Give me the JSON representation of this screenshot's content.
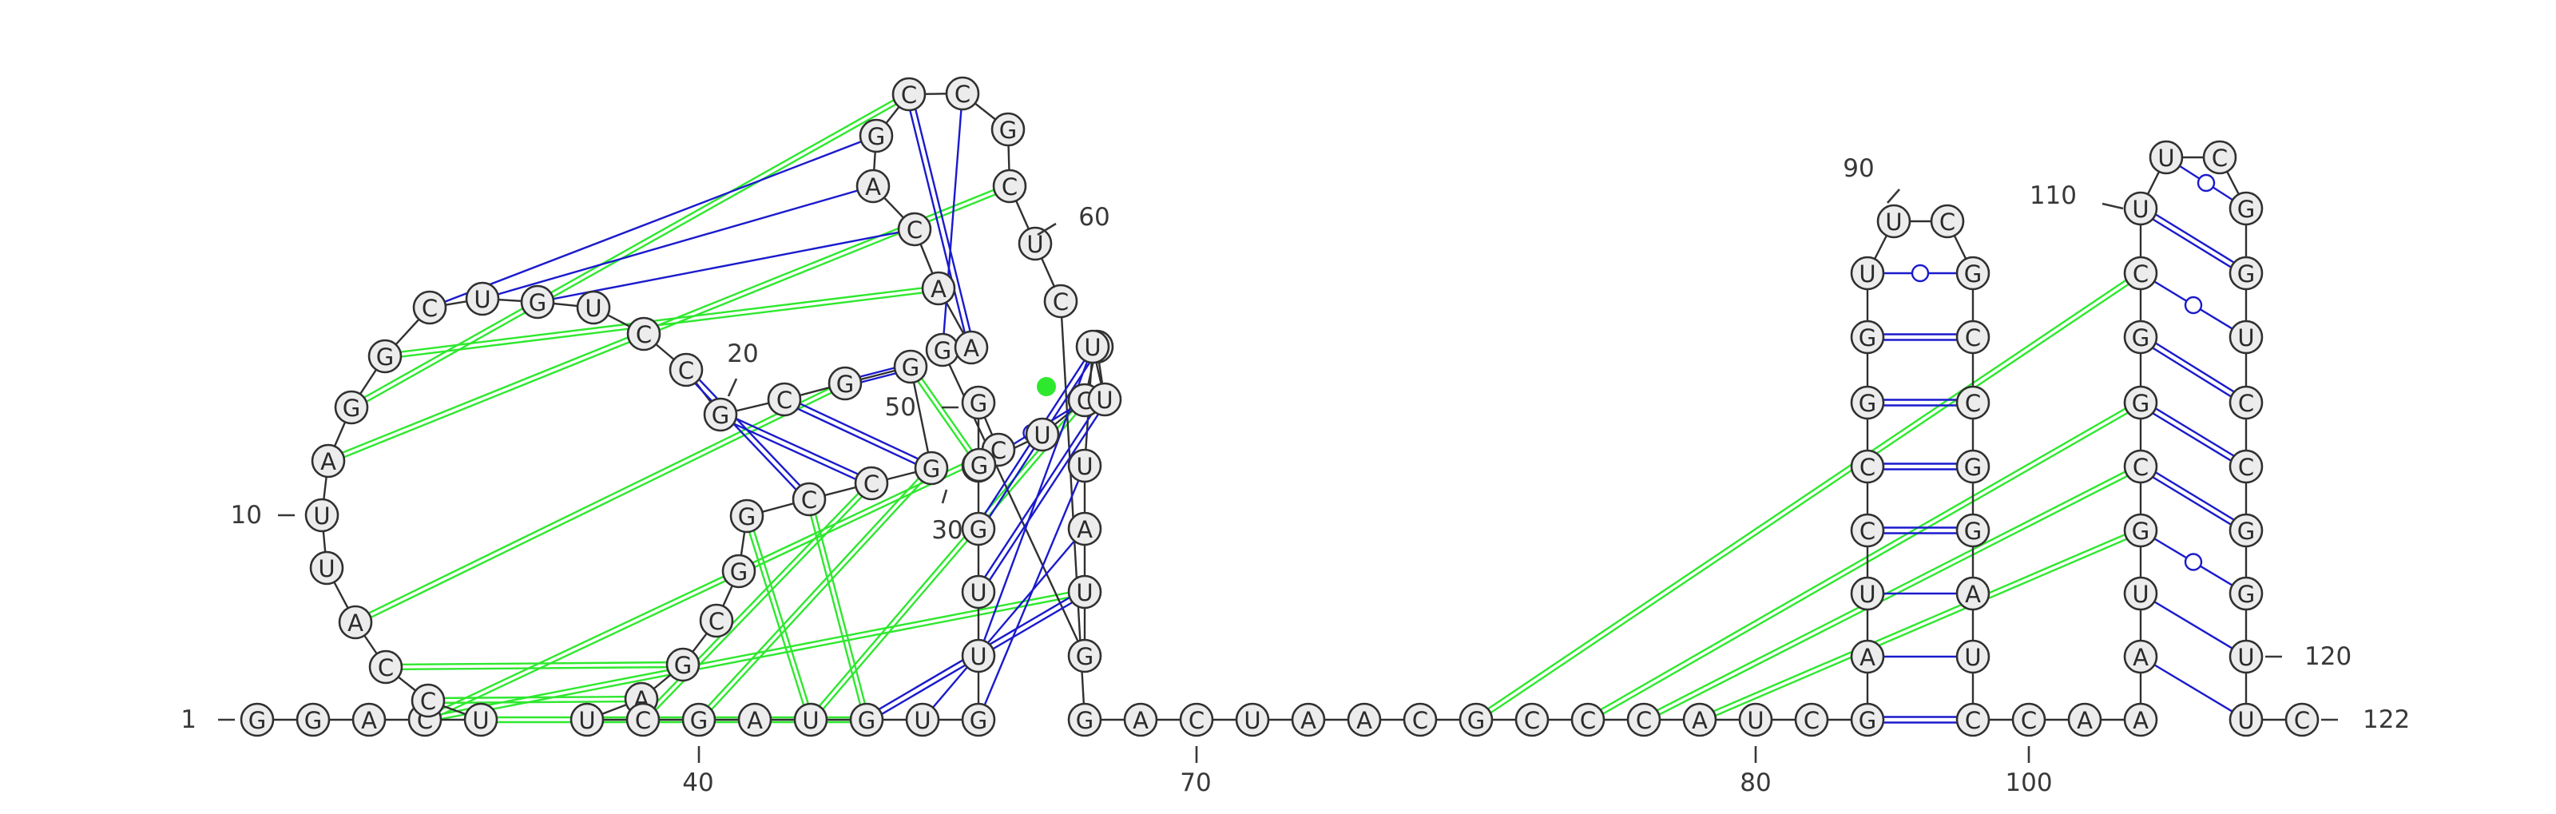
{
  "colors": {
    "canonical": "#1a1acd",
    "tertiary": "#2ee82e",
    "node_fill": "#ececec",
    "node_stroke": "#303030",
    "text": "#2a2a2a"
  },
  "nucleotides": [
    {
      "id": 1,
      "base": "G"
    },
    {
      "id": 2,
      "base": "G"
    },
    {
      "id": 3,
      "base": "A"
    },
    {
      "id": 4,
      "base": "C"
    },
    {
      "id": 5,
      "base": "U"
    },
    {
      "id": 6,
      "base": "C"
    },
    {
      "id": 7,
      "base": "C"
    },
    {
      "id": 8,
      "base": "A"
    },
    {
      "id": 9,
      "base": "U"
    },
    {
      "id": 10,
      "base": "U"
    },
    {
      "id": 11,
      "base": "A"
    },
    {
      "id": 12,
      "base": "G"
    },
    {
      "id": 13,
      "base": "G"
    },
    {
      "id": 14,
      "base": "C"
    },
    {
      "id": 15,
      "base": "U"
    },
    {
      "id": 16,
      "base": "G"
    },
    {
      "id": 17,
      "base": "U"
    },
    {
      "id": 18,
      "base": "C"
    },
    {
      "id": 19,
      "base": "C"
    },
    {
      "id": 20,
      "base": "G"
    },
    {
      "id": 21,
      "base": "C"
    },
    {
      "id": 22,
      "base": "G"
    },
    {
      "id": 23,
      "base": "G"
    },
    {
      "id": 24,
      "base": "G"
    },
    {
      "id": 25,
      "base": "C"
    },
    {
      "id": 26,
      "base": "C"
    },
    {
      "id": 27,
      "base": "G"
    },
    {
      "id": 28,
      "base": "G"
    },
    {
      "id": 29,
      "base": "C"
    },
    {
      "id": 30,
      "base": "G"
    },
    {
      "id": 31,
      "base": "A"
    },
    {
      "id": 32,
      "base": "U"
    },
    {
      "id": 33,
      "base": "C"
    },
    {
      "id": 34,
      "base": "G"
    },
    {
      "id": 35,
      "base": "A"
    },
    {
      "id": 36,
      "base": "U"
    },
    {
      "id": 37,
      "base": "G"
    },
    {
      "id": 38,
      "base": "U"
    },
    {
      "id": 39,
      "base": "G"
    },
    {
      "id": 40,
      "base": "U"
    },
    {
      "id": 41,
      "base": "U"
    },
    {
      "id": 42,
      "base": "G"
    },
    {
      "id": 43,
      "base": "C"
    },
    {
      "id": 44,
      "base": "G"
    },
    {
      "id": 45,
      "base": "C"
    },
    {
      "id": 46,
      "base": "G"
    },
    {
      "id": 47,
      "base": "U"
    },
    {
      "id": 48,
      "base": "C"
    },
    {
      "id": 49,
      "base": "G"
    },
    {
      "id": 50,
      "base": "U"
    },
    {
      "id": 51,
      "base": "U"
    },
    {
      "id": 52,
      "base": "U"
    },
    {
      "id": 53,
      "base": "A"
    },
    {
      "id": 54,
      "base": "U"
    },
    {
      "id": 55,
      "base": "G"
    },
    {
      "id": 56,
      "base": "G"
    },
    {
      "id": 57,
      "base": "A"
    },
    {
      "id": 58,
      "base": "A"
    },
    {
      "id": 59,
      "base": "C"
    },
    {
      "id": 60,
      "base": "A"
    },
    {
      "id": 61,
      "base": "G"
    },
    {
      "id": 62,
      "base": "C"
    },
    {
      "id": 63,
      "base": "C"
    },
    {
      "id": 64,
      "base": "G"
    },
    {
      "id": 65,
      "base": "C"
    },
    {
      "id": 66,
      "base": "U"
    },
    {
      "id": 67,
      "base": "C"
    },
    {
      "id": 68,
      "base": "G"
    },
    {
      "id": 69,
      "base": "A"
    },
    {
      "id": 70,
      "base": "C"
    },
    {
      "id": 71,
      "base": "U"
    },
    {
      "id": 72,
      "base": "A"
    },
    {
      "id": 73,
      "base": "A"
    },
    {
      "id": 74,
      "base": "C"
    },
    {
      "id": 75,
      "base": "G"
    },
    {
      "id": 76,
      "base": "C"
    },
    {
      "id": 77,
      "base": "C"
    },
    {
      "id": 78,
      "base": "C"
    },
    {
      "id": 79,
      "base": "A"
    },
    {
      "id": 80,
      "base": "U"
    },
    {
      "id": 81,
      "base": "C"
    },
    {
      "id": 82,
      "base": "G"
    },
    {
      "id": 83,
      "base": "A"
    },
    {
      "id": 84,
      "base": "U"
    },
    {
      "id": 85,
      "base": "C"
    },
    {
      "id": 86,
      "base": "C"
    },
    {
      "id": 87,
      "base": "G"
    },
    {
      "id": 88,
      "base": "G"
    },
    {
      "id": 89,
      "base": "U"
    },
    {
      "id": 90,
      "base": "U"
    },
    {
      "id": 91,
      "base": "C"
    },
    {
      "id": 92,
      "base": "G"
    },
    {
      "id": 93,
      "base": "C"
    },
    {
      "id": 94,
      "base": "C"
    },
    {
      "id": 95,
      "base": "G"
    },
    {
      "id": 96,
      "base": "G"
    },
    {
      "id": 97,
      "base": "A"
    },
    {
      "id": 98,
      "base": "U"
    },
    {
      "id": 99,
      "base": "C"
    },
    {
      "id": 100,
      "base": "C"
    },
    {
      "id": 101,
      "base": "A"
    },
    {
      "id": 102,
      "base": "A"
    },
    {
      "id": 103,
      "base": "A"
    },
    {
      "id": 104,
      "base": "U"
    },
    {
      "id": 105,
      "base": "G"
    },
    {
      "id": 106,
      "base": "C"
    },
    {
      "id": 107,
      "base": "G"
    },
    {
      "id": 108,
      "base": "G"
    },
    {
      "id": 109,
      "base": "C"
    },
    {
      "id": 110,
      "base": "U"
    },
    {
      "id": 111,
      "base": "U"
    },
    {
      "id": 112,
      "base": "C"
    },
    {
      "id": 113,
      "base": "G"
    },
    {
      "id": 114,
      "base": "G"
    },
    {
      "id": 115,
      "base": "U"
    },
    {
      "id": 116,
      "base": "C"
    },
    {
      "id": 117,
      "base": "C"
    },
    {
      "id": 118,
      "base": "G"
    },
    {
      "id": 119,
      "base": "G"
    },
    {
      "id": 120,
      "base": "U"
    },
    {
      "id": 121,
      "base": "U"
    },
    {
      "id": 122,
      "base": "C"
    }
  ],
  "position_labels": [
    {
      "text": "1",
      "at": 1
    },
    {
      "text": "10",
      "at": 10
    },
    {
      "text": "20",
      "at": 20
    },
    {
      "text": "30",
      "at": 30
    },
    {
      "text": "40",
      "at": 40
    },
    {
      "text": "50",
      "at": 50
    },
    {
      "text": "60",
      "at": 60
    },
    {
      "text": "70",
      "at": 70
    },
    {
      "text": "80",
      "at": 80
    },
    {
      "text": "90",
      "at": 90
    },
    {
      "text": "100",
      "at": 100
    },
    {
      "text": "110",
      "at": 110
    },
    {
      "text": "120",
      "at": 120
    },
    {
      "text": "122",
      "at": 122
    }
  ],
  "canonical_pairs": [
    {
      "i": 19,
      "j": 26,
      "type": "WC"
    },
    {
      "i": 20,
      "j": 25,
      "type": "WC"
    },
    {
      "i": 21,
      "j": 24,
      "type": "WC"
    },
    {
      "i": 22,
      "j": 23,
      "type": "WC"
    },
    {
      "i": 37,
      "j": 54,
      "type": "WC"
    },
    {
      "i": 38,
      "j": 53,
      "type": "single"
    },
    {
      "i": 39,
      "j": 52,
      "type": "single"
    },
    {
      "i": 40,
      "j": 51,
      "type": "single"
    },
    {
      "i": 41,
      "j": 50,
      "type": "WC"
    },
    {
      "i": 42,
      "j": 49,
      "type": "WC"
    },
    {
      "i": 43,
      "j": 48,
      "type": "GU"
    },
    {
      "i": 14,
      "j": 61,
      "type": "single"
    },
    {
      "i": 15,
      "j": 60,
      "type": "single"
    },
    {
      "i": 16,
      "j": 59,
      "type": "single"
    },
    {
      "i": 57,
      "j": 62,
      "type": "WC"
    },
    {
      "i": 56,
      "j": 63,
      "type": "single"
    },
    {
      "i": 82,
      "j": 99,
      "type": "WC"
    },
    {
      "i": 83,
      "j": 98,
      "type": "single"
    },
    {
      "i": 84,
      "j": 97,
      "type": "single"
    },
    {
      "i": 85,
      "j": 96,
      "type": "WC"
    },
    {
      "i": 86,
      "j": 95,
      "type": "WC"
    },
    {
      "i": 87,
      "j": 94,
      "type": "WC"
    },
    {
      "i": 88,
      "j": 93,
      "type": "WC"
    },
    {
      "i": 89,
      "j": 92,
      "type": "GU"
    },
    {
      "i": 103,
      "j": 121,
      "type": "single"
    },
    {
      "i": 104,
      "j": 120,
      "type": "single"
    },
    {
      "i": 105,
      "j": 119,
      "type": "GU"
    },
    {
      "i": 106,
      "j": 118,
      "type": "WC"
    },
    {
      "i": 107,
      "j": 117,
      "type": "WC"
    },
    {
      "i": 108,
      "j": 116,
      "type": "WC"
    },
    {
      "i": 109,
      "j": 115,
      "type": "GU"
    },
    {
      "i": 110,
      "j": 114,
      "type": "WC"
    },
    {
      "i": 111,
      "j": 113,
      "type": "GU"
    }
  ],
  "tertiary_pairs": [
    {
      "i": 5,
      "j": 37
    },
    {
      "i": 6,
      "j": 31
    },
    {
      "i": 7,
      "j": 30
    },
    {
      "i": 8,
      "j": 22
    },
    {
      "i": 11,
      "j": 65
    },
    {
      "i": 12,
      "j": 62
    },
    {
      "i": 13,
      "j": 58
    },
    {
      "i": 4,
      "j": 54
    },
    {
      "i": 4,
      "j": 45
    },
    {
      "i": 24,
      "j": 34
    },
    {
      "i": 25,
      "j": 33
    },
    {
      "i": 26,
      "j": 37
    },
    {
      "i": 27,
      "j": 36
    },
    {
      "i": 48,
      "j": 36
    },
    {
      "i": 75,
      "j": 109
    },
    {
      "i": 77,
      "j": 107
    },
    {
      "i": 78,
      "j": 106
    },
    {
      "i": 79,
      "j": 105
    },
    {
      "i": 51,
      "j": 49
    },
    {
      "i": 23,
      "j": 46
    }
  ],
  "highlight_point": {
    "near": 49
  }
}
